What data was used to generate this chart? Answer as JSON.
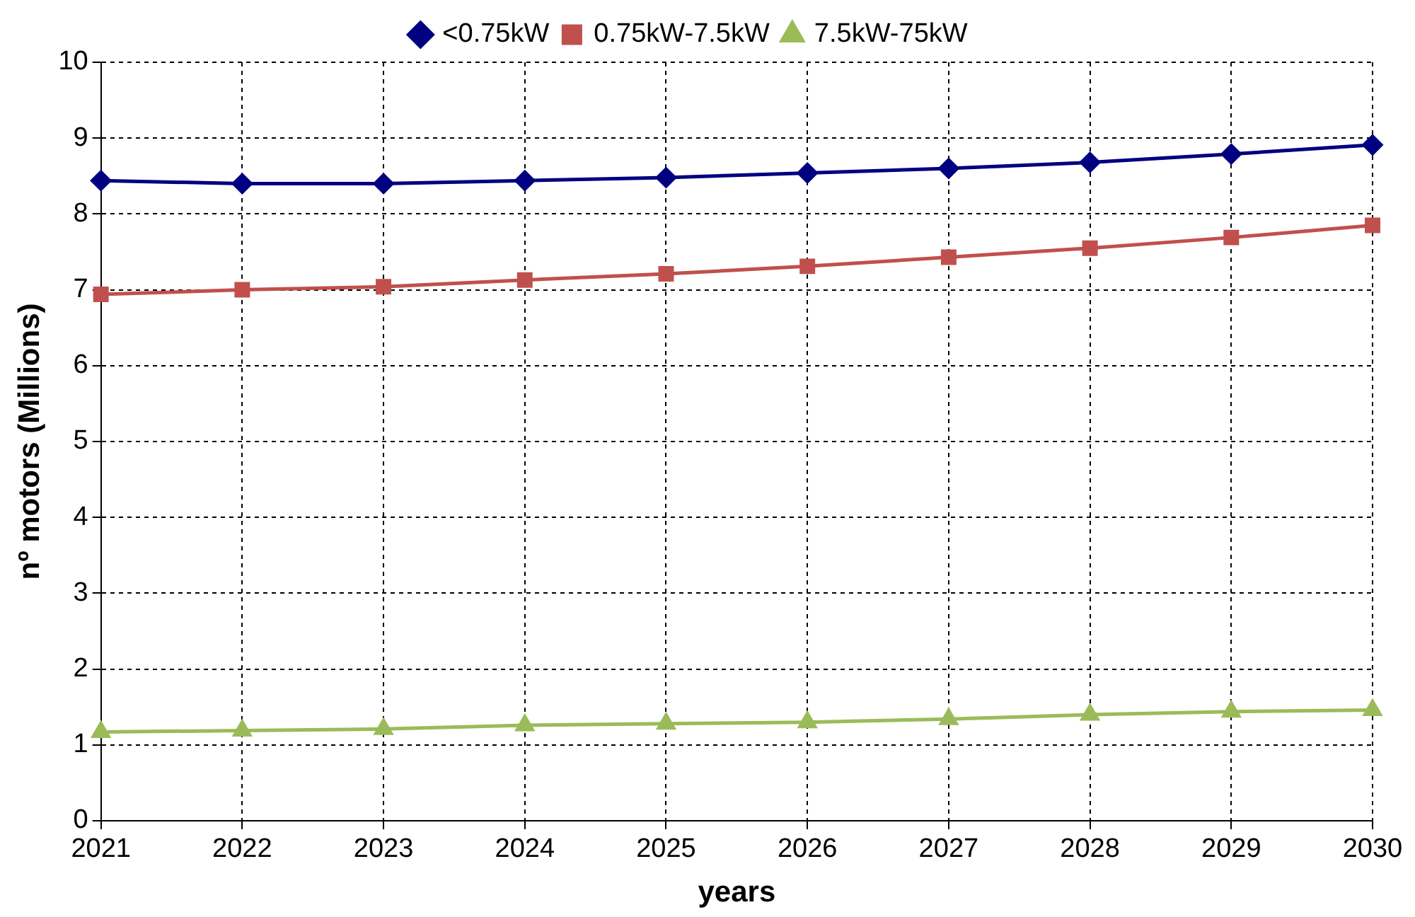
{
  "chart_data": {
    "type": "line",
    "xlabel": "years",
    "ylabel": "nº motors (Millions)",
    "categories": [
      "2021",
      "2022",
      "2023",
      "2024",
      "2025",
      "2026",
      "2027",
      "2028",
      "2029",
      "2030"
    ],
    "series": [
      {
        "name": "<0.75kW",
        "color": "#000080",
        "marker": "diamond",
        "values": [
          8.44,
          8.4,
          8.4,
          8.44,
          8.48,
          8.54,
          8.6,
          8.68,
          8.79,
          8.91
        ]
      },
      {
        "name": "0.75kW-7.5kW",
        "color": "#c0504d",
        "marker": "square",
        "values": [
          6.94,
          7.0,
          7.04,
          7.13,
          7.21,
          7.31,
          7.43,
          7.55,
          7.69,
          7.85
        ]
      },
      {
        "name": "7.5kW-75kW",
        "color": "#9bbb59",
        "marker": "triangle",
        "values": [
          1.17,
          1.19,
          1.21,
          1.26,
          1.28,
          1.3,
          1.34,
          1.4,
          1.44,
          1.46
        ]
      }
    ],
    "ylim": [
      0,
      10
    ],
    "yticks": [
      0,
      1,
      2,
      3,
      4,
      5,
      6,
      7,
      8,
      9,
      10
    ],
    "grid": true,
    "legend": "top",
    "line_style": "solid"
  }
}
